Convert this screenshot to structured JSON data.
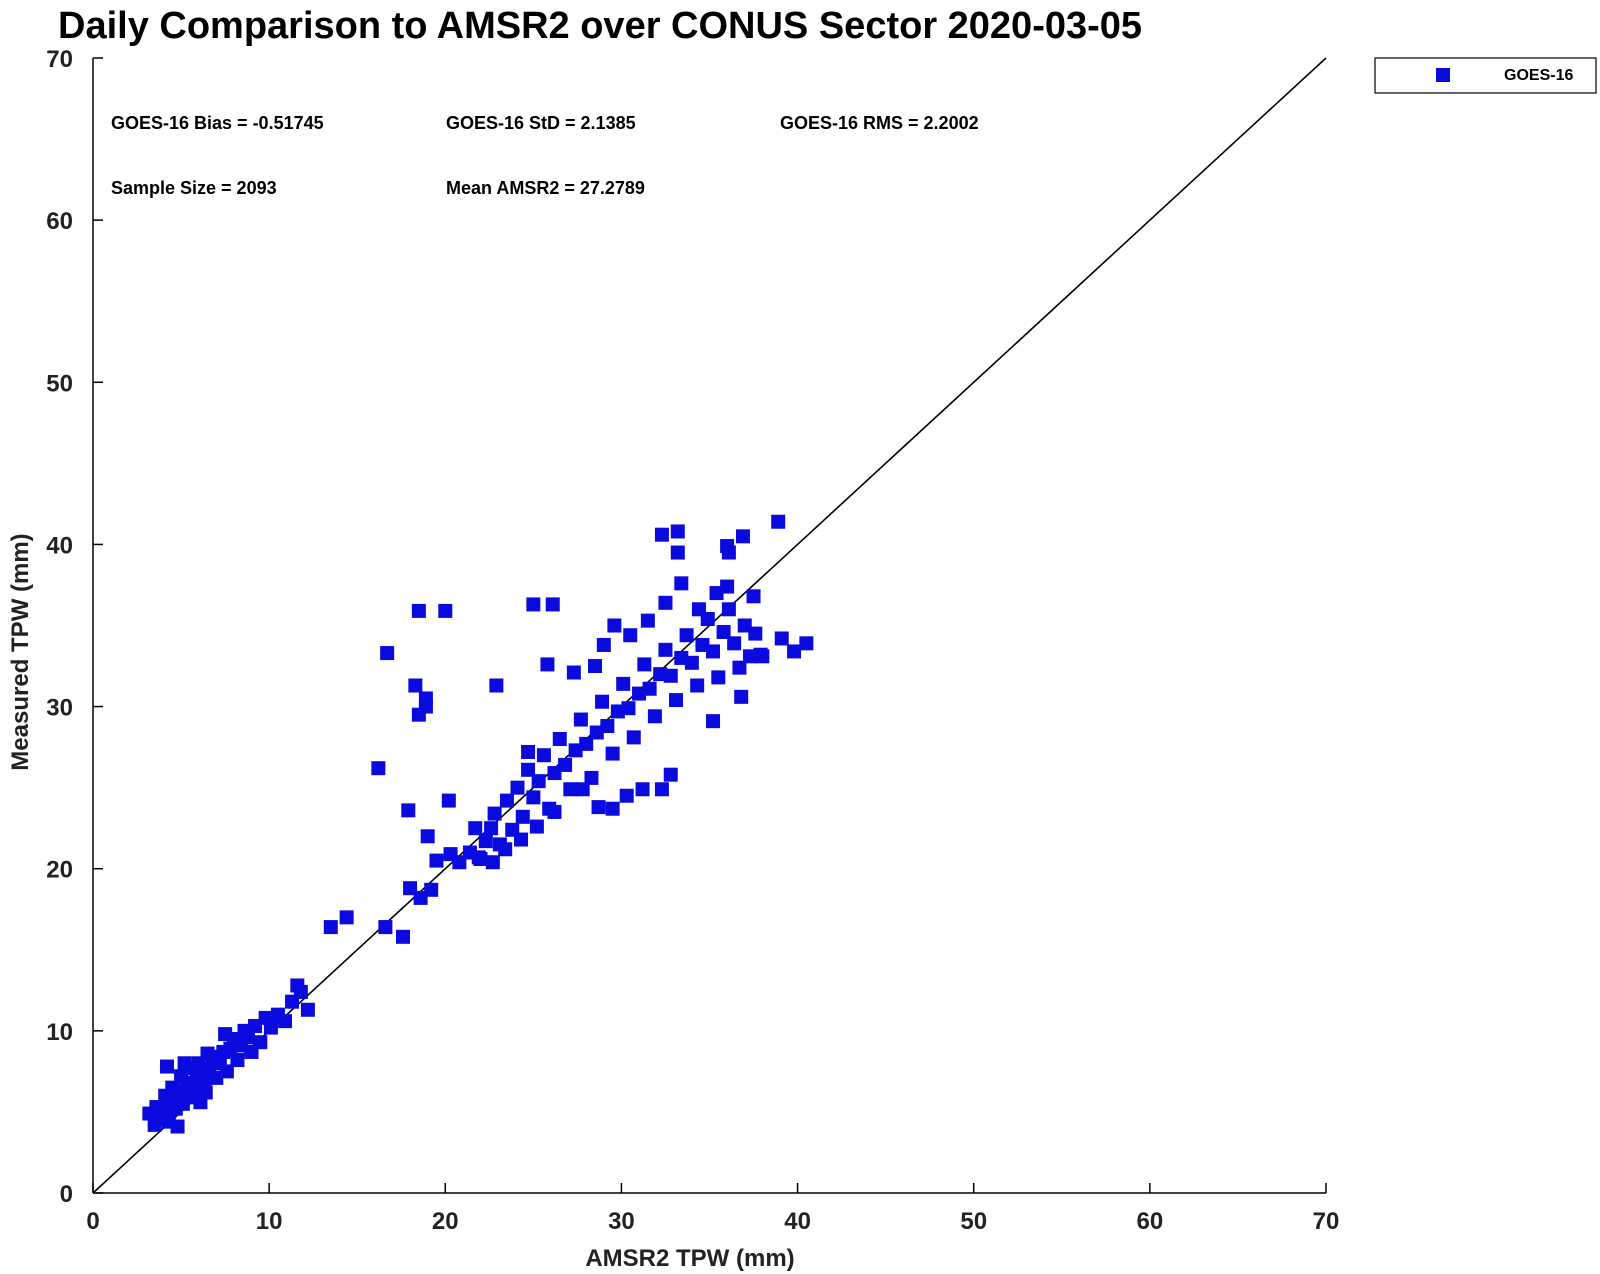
{
  "chart_data": {
    "type": "scatter",
    "title": "Daily Comparison to AMSR2 over CONUS Sector 2020-03-05",
    "xlabel": "AMSR2 TPW (mm)",
    "ylabel": "Measured TPW (mm)",
    "xlim": [
      0,
      70
    ],
    "ylim": [
      0,
      70
    ],
    "xticks": [
      0,
      10,
      20,
      30,
      40,
      50,
      60,
      70
    ],
    "yticks": [
      0,
      10,
      20,
      30,
      40,
      50,
      60,
      70
    ],
    "grid": false,
    "legend_position": "top-right, outside plot",
    "reference_line": "y = x",
    "colors": {
      "series": "#0a0adf",
      "line": "#000000"
    },
    "series": [
      {
        "name": "GOES-16",
        "marker": "square",
        "points": [
          [
            3.2,
            4.9
          ],
          [
            3.5,
            4.2
          ],
          [
            3.6,
            5.3
          ],
          [
            3.8,
            4.6
          ],
          [
            4.0,
            5.0
          ],
          [
            4.1,
            6.0
          ],
          [
            4.3,
            4.4
          ],
          [
            4.4,
            5.6
          ],
          [
            4.5,
            6.5
          ],
          [
            4.7,
            5.2
          ],
          [
            4.8,
            4.1
          ],
          [
            4.9,
            6.2
          ],
          [
            5.0,
            7.2
          ],
          [
            5.1,
            5.5
          ],
          [
            5.3,
            6.8
          ],
          [
            5.4,
            7.7
          ],
          [
            5.6,
            5.9
          ],
          [
            5.7,
            6.5
          ],
          [
            5.9,
            7.3
          ],
          [
            6.0,
            8.0
          ],
          [
            6.1,
            5.6
          ],
          [
            6.3,
            7.0
          ],
          [
            6.4,
            6.2
          ],
          [
            6.6,
            7.6
          ],
          [
            6.8,
            8.4
          ],
          [
            7.0,
            7.1
          ],
          [
            7.2,
            8.0
          ],
          [
            7.4,
            8.7
          ],
          [
            7.6,
            7.5
          ],
          [
            7.8,
            8.9
          ],
          [
            8.0,
            9.5
          ],
          [
            8.2,
            8.2
          ],
          [
            8.4,
            9.1
          ],
          [
            8.6,
            10.0
          ],
          [
            8.8,
            9.6
          ],
          [
            9.0,
            8.7
          ],
          [
            9.2,
            10.3
          ],
          [
            9.5,
            9.3
          ],
          [
            9.8,
            10.8
          ],
          [
            10.1,
            10.2
          ],
          [
            10.5,
            11.0
          ],
          [
            10.9,
            10.6
          ],
          [
            11.3,
            11.8
          ],
          [
            11.6,
            12.8
          ],
          [
            11.8,
            12.4
          ],
          [
            12.2,
            11.3
          ],
          [
            4.2,
            7.8
          ],
          [
            5.2,
            8.0
          ],
          [
            6.5,
            8.6
          ],
          [
            7.5,
            9.8
          ],
          [
            16.2,
            26.2
          ],
          [
            16.7,
            33.3
          ],
          [
            17.9,
            23.6
          ],
          [
            18.3,
            31.3
          ],
          [
            18.5,
            35.9
          ],
          [
            18.5,
            29.5
          ],
          [
            18.9,
            30.5
          ],
          [
            18.9,
            30.0
          ],
          [
            19.0,
            22.0
          ],
          [
            20.0,
            35.9
          ],
          [
            20.2,
            24.2
          ],
          [
            13.5,
            16.4
          ],
          [
            14.4,
            17.0
          ],
          [
            16.6,
            16.4
          ],
          [
            17.6,
            15.8
          ],
          [
            18.0,
            18.8
          ],
          [
            18.6,
            18.2
          ],
          [
            19.2,
            18.7
          ],
          [
            19.5,
            20.5
          ],
          [
            20.3,
            20.9
          ],
          [
            20.8,
            20.4
          ],
          [
            21.4,
            21.0
          ],
          [
            21.9,
            20.7
          ],
          [
            22.3,
            21.7
          ],
          [
            22.6,
            22.5
          ],
          [
            22.8,
            23.4
          ],
          [
            23.1,
            21.5
          ],
          [
            23.5,
            24.2
          ],
          [
            23.8,
            22.4
          ],
          [
            24.1,
            25.0
          ],
          [
            24.4,
            23.2
          ],
          [
            24.7,
            26.1
          ],
          [
            25.0,
            24.4
          ],
          [
            25.3,
            25.4
          ],
          [
            25.6,
            27.0
          ],
          [
            25.9,
            23.7
          ],
          [
            26.2,
            25.9
          ],
          [
            26.5,
            28.0
          ],
          [
            26.8,
            26.4
          ],
          [
            27.1,
            24.9
          ],
          [
            27.4,
            27.3
          ],
          [
            27.7,
            29.2
          ],
          [
            28.0,
            27.7
          ],
          [
            28.3,
            25.6
          ],
          [
            28.6,
            28.4
          ],
          [
            28.9,
            30.3
          ],
          [
            29.2,
            28.8
          ],
          [
            29.5,
            27.1
          ],
          [
            29.8,
            29.7
          ],
          [
            30.1,
            31.4
          ],
          [
            30.4,
            29.9
          ],
          [
            30.7,
            28.1
          ],
          [
            31.0,
            30.8
          ],
          [
            31.3,
            32.6
          ],
          [
            31.6,
            31.1
          ],
          [
            31.9,
            29.4
          ],
          [
            32.2,
            32.0
          ],
          [
            32.5,
            33.5
          ],
          [
            32.8,
            31.9
          ],
          [
            33.1,
            30.4
          ],
          [
            33.4,
            33.0
          ],
          [
            33.7,
            34.4
          ],
          [
            34.0,
            32.7
          ],
          [
            34.3,
            31.3
          ],
          [
            34.6,
            33.8
          ],
          [
            34.9,
            35.4
          ],
          [
            35.2,
            33.4
          ],
          [
            35.5,
            31.8
          ],
          [
            35.8,
            34.6
          ],
          [
            36.1,
            36.0
          ],
          [
            36.4,
            33.9
          ],
          [
            36.7,
            32.4
          ],
          [
            37.0,
            35.0
          ],
          [
            37.3,
            33.1
          ],
          [
            37.6,
            34.5
          ],
          [
            37.9,
            33.2
          ],
          [
            28.5,
            32.5
          ],
          [
            29.0,
            33.8
          ],
          [
            29.6,
            35.0
          ],
          [
            30.5,
            34.4
          ],
          [
            31.5,
            35.3
          ],
          [
            32.5,
            36.4
          ],
          [
            33.4,
            37.6
          ],
          [
            34.4,
            36.0
          ],
          [
            35.4,
            37.0
          ],
          [
            36.0,
            37.4
          ],
          [
            27.8,
            24.9
          ],
          [
            28.7,
            23.8
          ],
          [
            29.5,
            23.7
          ],
          [
            30.3,
            24.5
          ],
          [
            31.2,
            24.9
          ],
          [
            32.3,
            24.9
          ],
          [
            32.8,
            25.8
          ],
          [
            33.2,
            40.8
          ],
          [
            32.3,
            40.6
          ],
          [
            33.2,
            39.5
          ],
          [
            36.0,
            39.9
          ],
          [
            36.1,
            39.5
          ],
          [
            36.9,
            40.5
          ],
          [
            38.9,
            41.4
          ],
          [
            25.0,
            36.3
          ],
          [
            26.1,
            36.3
          ],
          [
            25.8,
            32.6
          ],
          [
            27.3,
            32.1
          ],
          [
            22.9,
            31.3
          ],
          [
            37.5,
            36.8
          ],
          [
            39.1,
            34.2
          ],
          [
            39.8,
            33.4
          ],
          [
            40.5,
            33.9
          ],
          [
            38.0,
            33.1
          ],
          [
            36.8,
            30.6
          ],
          [
            35.2,
            29.1
          ],
          [
            21.7,
            22.5
          ],
          [
            22.0,
            20.6
          ],
          [
            22.7,
            20.4
          ],
          [
            23.4,
            21.2
          ],
          [
            24.3,
            21.8
          ],
          [
            25.2,
            22.6
          ],
          [
            26.2,
            23.5
          ],
          [
            24.7,
            27.2
          ]
        ]
      }
    ]
  },
  "stats": {
    "bias": "GOES-16 Bias = -0.51745",
    "std": "GOES-16 StD = 2.1385",
    "rms": "GOES-16 RMS = 2.2002",
    "sample_size": "Sample Size = 2093",
    "mean": "Mean AMSR2 = 27.2789"
  },
  "legend": {
    "label": "GOES-16"
  }
}
